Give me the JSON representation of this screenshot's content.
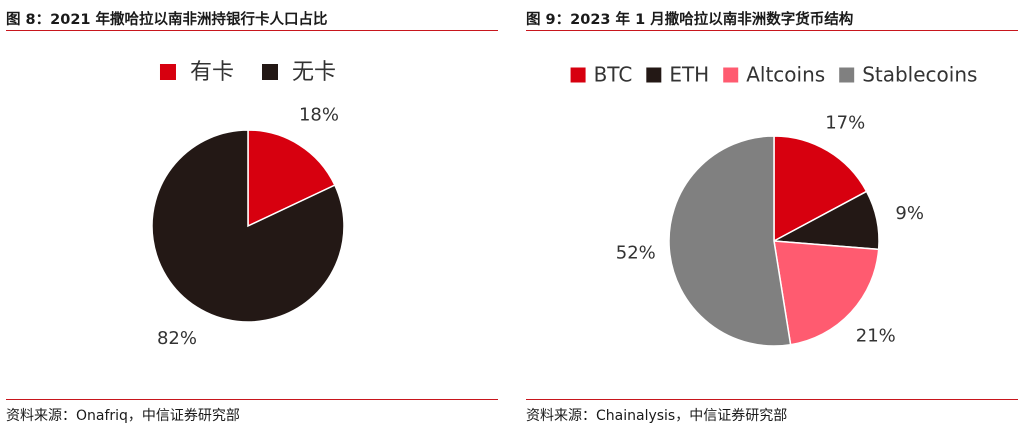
{
  "charts": {
    "fig8": {
      "title": "图 8：2021 年撒哈拉以南非洲持银行卡人口占比",
      "source": "资料来源：Onafriq，中信证券研究部"
    },
    "fig9": {
      "title": "图 9：2023 年 1 月撒哈拉以南非洲数字货币结构",
      "source": "资料来源：Chainalysis，中信证券研究部"
    }
  },
  "chart_data": [
    {
      "type": "pie",
      "title": "图 8：2021 年撒哈拉以南非洲持银行卡人口占比",
      "categories": [
        "有卡",
        "无卡"
      ],
      "values": [
        18,
        82
      ],
      "labels": [
        "18%",
        "82%"
      ],
      "colors": [
        "#d7000f",
        "#231815"
      ],
      "legend": "top"
    },
    {
      "type": "pie",
      "title": "图 9：2023 年 1 月撒哈拉以南非洲数字货币结构",
      "categories": [
        "BTC",
        "ETH",
        "Altcoins",
        "Stablecoins"
      ],
      "values": [
        17,
        9,
        21,
        52
      ],
      "labels": [
        "17%",
        "9%",
        "21%",
        "52%"
      ],
      "colors": [
        "#d7000f",
        "#231815",
        "#ff5b70",
        "#808080"
      ],
      "legend": "top"
    }
  ]
}
